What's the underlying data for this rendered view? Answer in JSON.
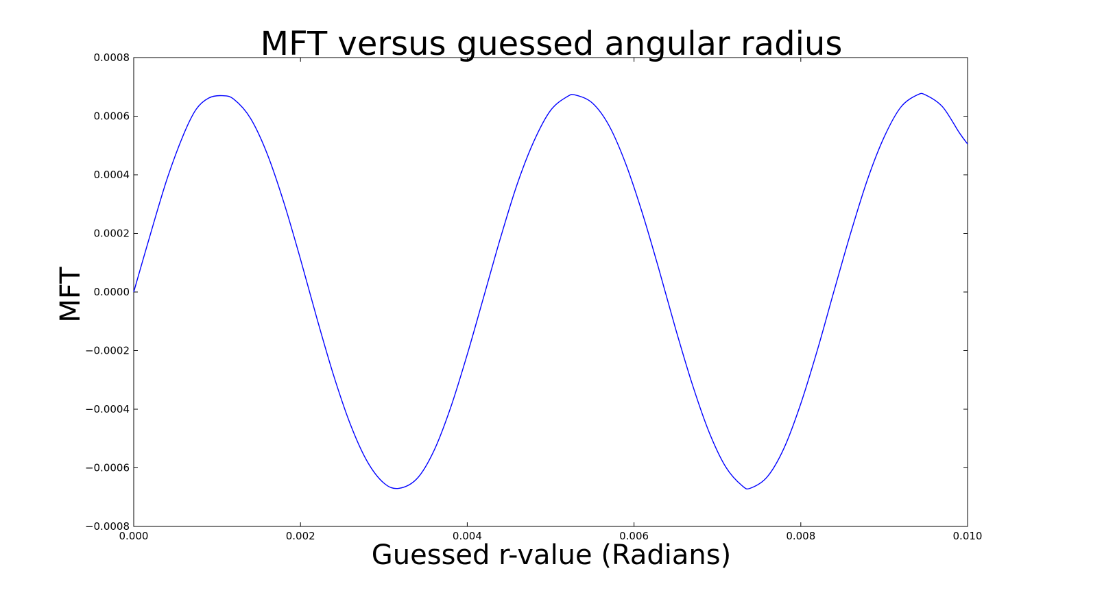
{
  "chart_data": {
    "type": "line",
    "title": "MFT versus guessed angular radius",
    "xlabel": "Guessed r-value (Radians)",
    "ylabel": "MFT",
    "xlim": [
      0.0,
      0.01
    ],
    "ylim": [
      -0.0008,
      0.0008
    ],
    "x_ticks": [
      "0.000",
      "0.002",
      "0.004",
      "0.006",
      "0.008",
      "0.010"
    ],
    "y_ticks": [
      "−0.0008",
      "−0.0006",
      "−0.0004",
      "−0.0002",
      "0.0000",
      "0.0002",
      "0.0004",
      "0.0006",
      "0.0008"
    ],
    "grid": false,
    "legend": "none",
    "line_color": "#0000ff",
    "series": [
      {
        "x": [
          0.0,
          0.0002,
          0.0004,
          0.0006,
          0.00075,
          0.0009,
          0.00106,
          0.0012,
          0.0014,
          0.0016,
          0.0018,
          0.002,
          0.0022,
          0.0024,
          0.0026,
          0.0028,
          0.003,
          0.00318,
          0.0034,
          0.0036,
          0.0038,
          0.004,
          0.0042,
          0.0044,
          0.0046,
          0.0048,
          0.005,
          0.0052,
          0.0053,
          0.0055,
          0.0057,
          0.0059,
          0.0061,
          0.0063,
          0.0065,
          0.0067,
          0.0069,
          0.0071,
          0.0073,
          0.0074,
          0.0076,
          0.0078,
          0.008,
          0.0082,
          0.0084,
          0.0086,
          0.0088,
          0.009,
          0.0092,
          0.0094,
          0.0095,
          0.0097,
          0.0099,
          0.01
        ],
        "y": [
          0.0,
          0.000197,
          0.000386,
          0.000539,
          0.000624,
          0.000662,
          0.00067,
          0.000658,
          0.000593,
          0.000472,
          0.000306,
          0.000112,
          -9.3e-05,
          -0.000287,
          -0.000453,
          -0.000578,
          -0.000652,
          -0.00067,
          -0.000636,
          -0.000542,
          -0.000395,
          -0.000213,
          -1.4e-05,
          0.000186,
          0.000369,
          0.000515,
          0.00062,
          0.000667,
          0.000672,
          0.000645,
          0.000568,
          0.000438,
          0.000269,
          7.6e-05,
          -0.000127,
          -0.000316,
          -0.000478,
          -0.000597,
          -0.000662,
          -0.000669,
          -0.00063,
          -0.000532,
          -0.000381,
          -0.000197,
          5e-06,
          0.000203,
          0.000384,
          0.000529,
          0.000631,
          0.000673,
          0.000672,
          0.000632,
          0.000544,
          0.000505
        ]
      }
    ]
  }
}
